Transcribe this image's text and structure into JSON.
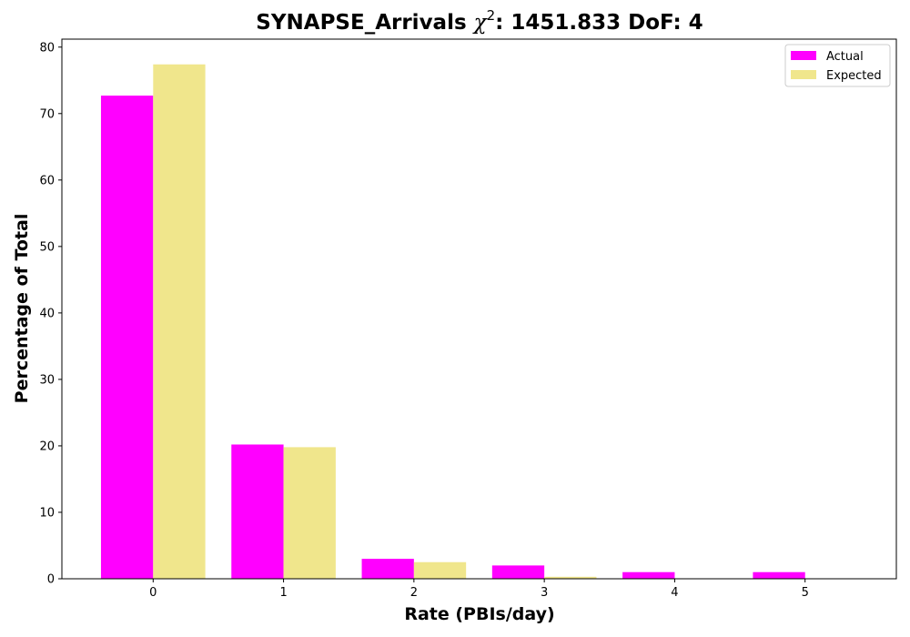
{
  "chart_data": {
    "type": "bar",
    "title_prefix": "SYNAPSE_Arrivals ",
    "title_symbol": "χ",
    "title_superscript": "2",
    "title_suffix": ": 1451.833 DoF: 4",
    "xlabel": "Rate (PBIs/day)",
    "ylabel": "Percentage of Total",
    "categories": [
      "0",
      "1",
      "2",
      "3",
      "4",
      "5"
    ],
    "x": [
      0,
      1,
      2,
      3,
      4,
      5
    ],
    "xlim": [
      -0.7,
      5.7
    ],
    "ylim": [
      0,
      81.2
    ],
    "yticks": [
      0,
      10,
      20,
      30,
      40,
      50,
      60,
      70,
      80
    ],
    "grid": false,
    "legend_position": "upper-right",
    "series": [
      {
        "name": "Actual",
        "color": "#ff00ff",
        "values": [
          72.7,
          20.2,
          3.0,
          2.0,
          1.0,
          1.0
        ]
      },
      {
        "name": "Expected",
        "color": "#f0e68c",
        "values": [
          77.4,
          19.8,
          2.5,
          0.3,
          0.0,
          0.0
        ]
      }
    ]
  }
}
